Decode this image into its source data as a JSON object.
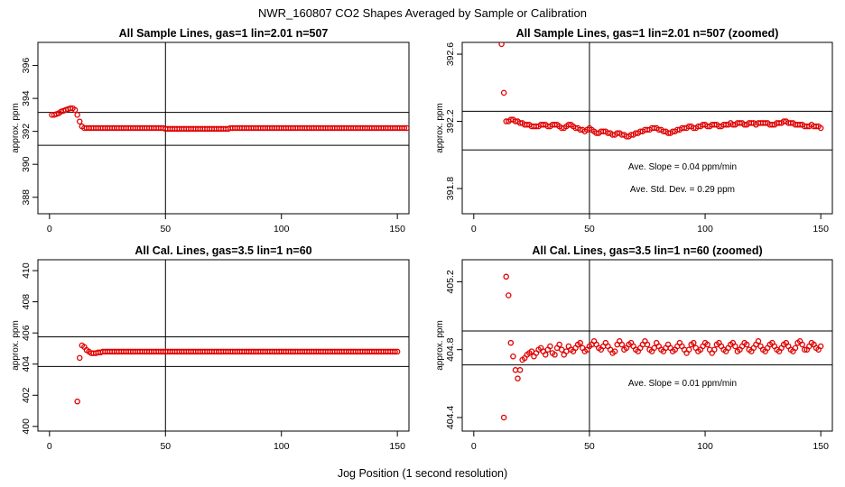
{
  "figure": {
    "title": "NWR_160807  CO2 Shapes Averaged by Sample or Calibration",
    "xlabel": "Jog Position (1 second resolution)"
  },
  "chart_data": [
    {
      "type": "scatter",
      "title": "All Sample Lines, gas=1 lin=2.01 n=507",
      "ylabel": "approx. ppm",
      "xlim": [
        -5,
        155
      ],
      "ylim": [
        387.0,
        397.4
      ],
      "xticks": [
        "0",
        "50",
        "100",
        "150"
      ],
      "yticks": [
        "388",
        "390",
        "392",
        "394",
        "396"
      ],
      "hlines": [
        393.15,
        391.15
      ],
      "vline": 50,
      "annotations": [],
      "series": [
        {
          "marker": "circle",
          "color": "#e00000",
          "x_start": 1,
          "x_step": 1,
          "y": [
            393.0,
            393.0,
            393.05,
            393.1,
            393.2,
            393.25,
            393.3,
            393.35,
            393.4,
            393.4,
            393.3,
            393.0,
            392.6,
            392.3,
            392.2,
            392.2,
            392.2,
            392.2,
            392.2,
            392.2,
            392.2,
            392.2,
            392.2,
            392.2,
            392.2,
            392.2,
            392.2,
            392.2,
            392.2,
            392.2,
            392.2,
            392.2,
            392.2,
            392.2,
            392.2,
            392.2,
            392.2,
            392.2,
            392.2,
            392.2,
            392.2,
            392.2,
            392.2,
            392.2,
            392.2,
            392.2,
            392.2,
            392.2,
            392.2,
            392.15,
            392.15,
            392.15,
            392.15,
            392.15,
            392.15,
            392.15,
            392.15,
            392.15,
            392.15,
            392.15,
            392.15,
            392.15,
            392.15,
            392.15,
            392.15,
            392.15,
            392.15,
            392.15,
            392.15,
            392.15,
            392.15,
            392.15,
            392.15,
            392.15,
            392.15,
            392.15,
            392.15,
            392.2,
            392.2,
            392.2,
            392.2,
            392.2,
            392.2,
            392.2,
            392.2,
            392.2,
            392.2,
            392.2,
            392.2,
            392.2,
            392.2,
            392.2,
            392.2,
            392.2,
            392.2,
            392.2,
            392.2,
            392.2,
            392.2,
            392.2,
            392.2,
            392.2,
            392.2,
            392.2,
            392.2,
            392.2,
            392.2,
            392.2,
            392.2,
            392.2,
            392.2,
            392.2,
            392.2,
            392.2,
            392.2,
            392.2,
            392.2,
            392.2,
            392.2,
            392.2,
            392.2,
            392.2,
            392.2,
            392.2,
            392.2,
            392.2,
            392.2,
            392.2,
            392.2,
            392.2,
            392.2,
            392.2,
            392.2,
            392.2,
            392.2,
            392.2,
            392.2,
            392.2,
            392.2,
            392.2,
            392.2,
            392.2,
            392.2,
            392.2,
            392.2,
            392.2,
            392.2,
            392.2,
            392.2,
            392.2,
            392.2,
            392.2,
            392.2,
            392.2
          ]
        }
      ]
    },
    {
      "type": "scatter",
      "title": "All Sample Lines, gas=1 lin=2.01 n=507 (zoomed)",
      "ylabel": "approx. ppm",
      "xlim": [
        -5,
        155
      ],
      "ylim": [
        391.65,
        392.67
      ],
      "xticks": [
        "0",
        "50",
        "100",
        "150"
      ],
      "yticks": [
        "391.8",
        "392.2",
        "392.6"
      ],
      "hlines": [
        392.26,
        392.03
      ],
      "vline": 50,
      "annotations": [
        "Ave. Slope =  0.04  ppm/min",
        "Ave. Std. Dev. =  0.29  ppm"
      ],
      "series": [
        {
          "marker": "circle",
          "color": "#e00000",
          "x_start": 12,
          "x_step": 1,
          "y": [
            392.66,
            392.37,
            392.2,
            392.2,
            392.21,
            392.21,
            392.2,
            392.2,
            392.19,
            392.19,
            392.18,
            392.18,
            392.18,
            392.17,
            392.17,
            392.17,
            392.17,
            392.18,
            392.18,
            392.18,
            392.17,
            392.17,
            392.18,
            392.18,
            392.18,
            392.17,
            392.16,
            392.16,
            392.17,
            392.18,
            392.18,
            392.17,
            392.16,
            392.16,
            392.15,
            392.15,
            392.14,
            392.15,
            392.16,
            392.15,
            392.14,
            392.13,
            392.13,
            392.14,
            392.14,
            392.14,
            392.13,
            392.13,
            392.12,
            392.12,
            392.13,
            392.13,
            392.12,
            392.12,
            392.11,
            392.11,
            392.12,
            392.12,
            392.13,
            392.13,
            392.14,
            392.14,
            392.15,
            392.15,
            392.15,
            392.16,
            392.16,
            392.16,
            392.15,
            392.15,
            392.14,
            392.14,
            392.13,
            392.13,
            392.14,
            392.14,
            392.15,
            392.15,
            392.16,
            392.16,
            392.16,
            392.17,
            392.17,
            392.16,
            392.16,
            392.17,
            392.17,
            392.18,
            392.18,
            392.17,
            392.17,
            392.18,
            392.18,
            392.18,
            392.17,
            392.17,
            392.18,
            392.18,
            392.18,
            392.19,
            392.18,
            392.18,
            392.19,
            392.19,
            392.19,
            392.18,
            392.18,
            392.19,
            392.19,
            392.19,
            392.18,
            392.19,
            392.19,
            392.19,
            392.19,
            392.19,
            392.18,
            392.18,
            392.18,
            392.19,
            392.19,
            392.19,
            392.2,
            392.2,
            392.19,
            392.19,
            392.19,
            392.18,
            392.18,
            392.18,
            392.18,
            392.17,
            392.17,
            392.17,
            392.18,
            392.17,
            392.17,
            392.17,
            392.16
          ]
        }
      ]
    },
    {
      "type": "scatter",
      "title": "All Cal. Lines, gas=3.5 lin=1 n=60",
      "ylabel": "approx. ppm",
      "xlim": [
        -5,
        155
      ],
      "ylim": [
        399.7,
        410.7
      ],
      "xticks": [
        "0",
        "50",
        "100",
        "150"
      ],
      "yticks": [
        "400",
        "402",
        "404",
        "406",
        "408",
        "410"
      ],
      "hlines": [
        405.75,
        403.85
      ],
      "vline": 50,
      "annotations": [],
      "series": [
        {
          "marker": "circle",
          "color": "#e00000",
          "x_start": 12,
          "x_step": 1,
          "y": [
            401.6,
            404.4,
            405.2,
            405.1,
            404.9,
            404.8,
            404.7,
            404.7,
            404.7,
            404.75,
            404.75,
            404.8,
            404.8,
            404.8,
            404.8,
            404.8,
            404.8,
            404.8,
            404.8,
            404.8,
            404.8,
            404.8,
            404.8,
            404.8,
            404.8,
            404.8,
            404.8,
            404.8,
            404.8,
            404.8,
            404.8,
            404.8,
            404.8,
            404.8,
            404.8,
            404.8,
            404.8,
            404.8,
            404.8,
            404.8,
            404.8,
            404.8,
            404.8,
            404.8,
            404.8,
            404.8,
            404.8,
            404.8,
            404.8,
            404.8,
            404.8,
            404.8,
            404.8,
            404.8,
            404.8,
            404.8,
            404.8,
            404.8,
            404.8,
            404.8,
            404.8,
            404.8,
            404.8,
            404.8,
            404.8,
            404.8,
            404.8,
            404.8,
            404.8,
            404.8,
            404.8,
            404.8,
            404.8,
            404.8,
            404.8,
            404.8,
            404.8,
            404.8,
            404.8,
            404.8,
            404.8,
            404.8,
            404.8,
            404.8,
            404.8,
            404.8,
            404.8,
            404.8,
            404.8,
            404.8,
            404.8,
            404.8,
            404.8,
            404.8,
            404.8,
            404.8,
            404.8,
            404.8,
            404.8,
            404.8,
            404.8,
            404.8,
            404.8,
            404.8,
            404.8,
            404.8,
            404.8,
            404.8,
            404.8,
            404.8,
            404.8,
            404.8,
            404.8,
            404.8,
            404.8,
            404.8,
            404.8,
            404.8,
            404.8,
            404.8,
            404.8,
            404.8,
            404.8,
            404.8,
            404.8,
            404.8,
            404.8,
            404.8,
            404.8,
            404.8,
            404.8,
            404.8,
            404.8,
            404.8,
            404.8,
            404.8,
            404.8,
            404.8,
            404.8
          ]
        }
      ]
    },
    {
      "type": "scatter",
      "title": "All Cal. Lines, gas=3.5 lin=1 n=60 (zoomed)",
      "ylabel": "approx. ppm",
      "xlim": [
        -5,
        155
      ],
      "ylim": [
        404.32,
        405.33
      ],
      "xticks": [
        "0",
        "50",
        "100",
        "150"
      ],
      "yticks": [
        "404.4",
        "404.8",
        "405.2"
      ],
      "hlines": [
        404.91,
        404.71
      ],
      "vline": 50,
      "annotations": [
        "Ave. Slope =  0.01  ppm/min"
      ],
      "series": [
        {
          "marker": "circle",
          "color": "#e00000",
          "x_start": 13,
          "x_step": 1,
          "y": [
            404.4,
            405.23,
            405.12,
            404.84,
            404.76,
            404.68,
            404.63,
            404.68,
            404.74,
            404.75,
            404.77,
            404.78,
            404.79,
            404.76,
            404.78,
            404.8,
            404.81,
            404.79,
            404.77,
            404.8,
            404.82,
            404.78,
            404.77,
            404.81,
            404.83,
            404.8,
            404.77,
            404.79,
            404.82,
            404.8,
            404.79,
            404.81,
            404.83,
            404.84,
            404.81,
            404.79,
            404.8,
            404.82,
            404.83,
            404.85,
            404.83,
            404.81,
            404.8,
            404.82,
            404.84,
            404.82,
            404.8,
            404.78,
            404.79,
            404.83,
            404.85,
            404.83,
            404.8,
            404.81,
            404.83,
            404.84,
            404.82,
            404.8,
            404.79,
            404.81,
            404.83,
            404.85,
            404.83,
            404.8,
            404.79,
            404.81,
            404.84,
            404.82,
            404.8,
            404.79,
            404.81,
            404.83,
            404.81,
            404.79,
            404.8,
            404.82,
            404.84,
            404.82,
            404.8,
            404.78,
            404.8,
            404.83,
            404.84,
            404.81,
            404.79,
            404.8,
            404.82,
            404.84,
            404.83,
            404.8,
            404.78,
            404.8,
            404.83,
            404.84,
            404.82,
            404.8,
            404.79,
            404.81,
            404.83,
            404.84,
            404.82,
            404.79,
            404.8,
            404.82,
            404.84,
            404.83,
            404.8,
            404.79,
            404.81,
            404.83,
            404.85,
            404.82,
            404.8,
            404.79,
            404.81,
            404.83,
            404.84,
            404.82,
            404.8,
            404.79,
            404.81,
            404.83,
            404.84,
            404.82,
            404.8,
            404.79,
            404.81,
            404.84,
            404.85,
            404.83,
            404.8,
            404.8,
            404.82,
            404.84,
            404.83,
            404.81,
            404.8,
            404.82
          ]
        }
      ]
    }
  ]
}
